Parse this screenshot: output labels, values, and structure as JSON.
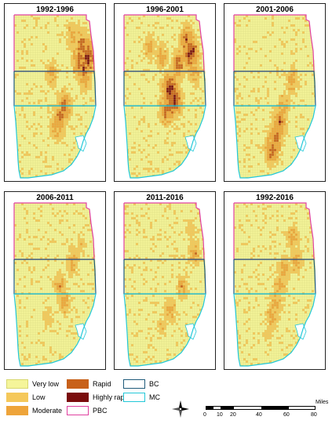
{
  "panels": [
    {
      "title": "1992-1996",
      "hotspots": [
        [
          0.82,
          0.18,
          3
        ],
        [
          0.88,
          0.25,
          4
        ],
        [
          0.84,
          0.32,
          3
        ],
        [
          0.78,
          0.28,
          3
        ],
        [
          0.86,
          0.4,
          2
        ],
        [
          0.6,
          0.55,
          3
        ],
        [
          0.55,
          0.62,
          3
        ],
        [
          0.5,
          0.7,
          2
        ],
        [
          0.45,
          0.35,
          2
        ],
        [
          0.7,
          0.12,
          2
        ]
      ]
    },
    {
      "title": "1996-2001",
      "hotspots": [
        [
          0.75,
          0.15,
          3
        ],
        [
          0.8,
          0.22,
          4
        ],
        [
          0.65,
          0.3,
          3
        ],
        [
          0.55,
          0.45,
          4
        ],
        [
          0.6,
          0.52,
          4
        ],
        [
          0.5,
          0.58,
          3
        ],
        [
          0.45,
          0.25,
          2
        ],
        [
          0.3,
          0.2,
          2
        ],
        [
          0.85,
          0.35,
          2
        ]
      ]
    },
    {
      "title": "2001-2006",
      "hotspots": [
        [
          0.55,
          0.65,
          3
        ],
        [
          0.5,
          0.75,
          3
        ],
        [
          0.45,
          0.82,
          3
        ],
        [
          0.7,
          0.4,
          2
        ],
        [
          0.6,
          0.55,
          2
        ]
      ]
    },
    {
      "title": "2006-2011",
      "hotspots": [
        [
          0.7,
          0.35,
          2
        ],
        [
          0.55,
          0.5,
          2
        ],
        [
          0.6,
          0.6,
          2
        ],
        [
          0.4,
          0.7,
          1
        ],
        [
          0.8,
          0.25,
          1
        ]
      ]
    },
    {
      "title": "2011-2016",
      "hotspots": [
        [
          0.85,
          0.3,
          2
        ],
        [
          0.7,
          0.5,
          2
        ],
        [
          0.55,
          0.65,
          2
        ],
        [
          0.45,
          0.75,
          1
        ],
        [
          0.8,
          0.15,
          1
        ]
      ]
    },
    {
      "title": "1992-2016",
      "hotspots": [
        [
          0.7,
          0.2,
          2
        ],
        [
          0.75,
          0.35,
          2
        ],
        [
          0.55,
          0.5,
          2
        ],
        [
          0.5,
          0.6,
          2
        ],
        [
          0.45,
          0.7,
          2
        ],
        [
          0.6,
          0.4,
          2
        ],
        [
          0.4,
          0.8,
          1
        ]
      ]
    }
  ],
  "legend": {
    "very_low": "Very low",
    "low": "Low",
    "moderate": "Moderate",
    "rapid": "Rapid",
    "highly_rapid": "Highly rapid",
    "pbc": "PBC",
    "bc": "BC",
    "mc": "MC"
  },
  "colors": {
    "very_low": "#f5f59a",
    "low": "#f5c85a",
    "moderate": "#eea43a",
    "rapid": "#c8611a",
    "highly_rapid": "#7a0c0c",
    "pbc": "#e040a0",
    "bc": "#1f5a7a",
    "mc": "#22c8d8",
    "grid": "#cccc77"
  },
  "scale": {
    "ticks": [
      "0",
      "10",
      "20",
      "40",
      "60",
      "80"
    ],
    "unit": "Miles"
  },
  "north_arrow": "compass-rose-icon"
}
